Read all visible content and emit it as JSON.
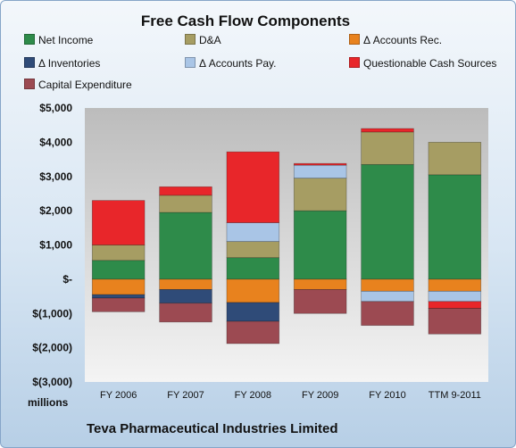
{
  "chart_data": {
    "type": "bar",
    "stacked": true,
    "title": "Free Cash Flow Components",
    "subtitle_footer": "Teva Pharmaceutical Industries Limited",
    "ylabel": "millions",
    "ylim": [
      -3000,
      5000
    ],
    "yticks": [
      -3000,
      -2000,
      -1000,
      0,
      1000,
      2000,
      3000,
      4000,
      5000
    ],
    "ytick_labels": [
      "$(3,000)",
      "$(2,000)",
      "$(1,000)",
      "$-",
      "$1,000",
      "$2,000",
      "$3,000",
      "$4,000",
      "$5,000"
    ],
    "categories": [
      "FY 2006",
      "FY 2007",
      "FY 2008",
      "FY 2009",
      "FY 2010",
      "TTM 9-2011"
    ],
    "legend_position": "top",
    "grid": false,
    "series": [
      {
        "name": "Net Income",
        "color": "#2e8b4a",
        "values": [
          550,
          1950,
          630,
          2000,
          3350,
          3050
        ]
      },
      {
        "name": "D&A",
        "color": "#a69d63",
        "values": [
          450,
          500,
          470,
          950,
          950,
          950
        ]
      },
      {
        "name": "Δ Accounts Rec.",
        "color": "#e8821e",
        "values": [
          -450,
          -300,
          -680,
          -300,
          -350,
          -350
        ]
      },
      {
        "name": "Δ Inventories",
        "color": "#2f4b78",
        "values": [
          -100,
          -400,
          -550,
          0,
          0,
          0
        ]
      },
      {
        "name": "Δ Accounts Pay.",
        "color": "#a9c5e6",
        "values": [
          0,
          0,
          550,
          380,
          -300,
          -300
        ]
      },
      {
        "name": "Questionable Cash Sources",
        "color": "#e8262a",
        "values": [
          1300,
          250,
          2070,
          50,
          100,
          -200
        ]
      },
      {
        "name": "Capital Expenditure",
        "color": "#9c4a52",
        "values": [
          -400,
          -550,
          -650,
          -700,
          -700,
          -750
        ]
      }
    ]
  }
}
